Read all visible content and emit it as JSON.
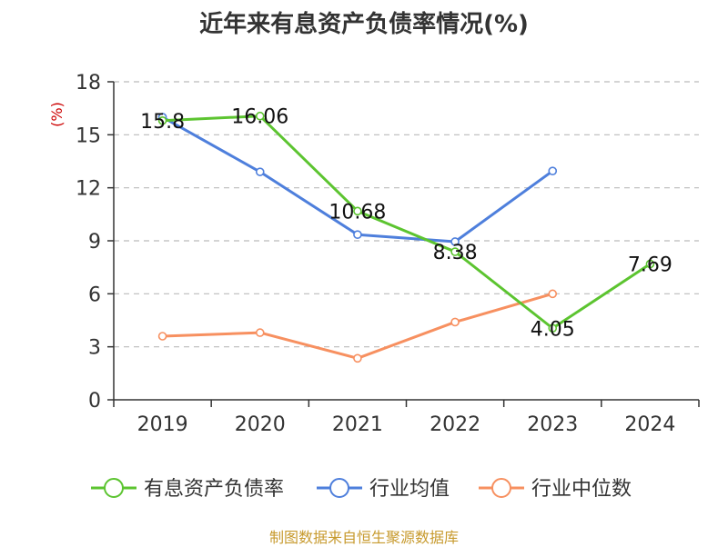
{
  "title": "近年来有息资产负债率情况(%)",
  "source": "制图数据来自恒生聚源数据库",
  "chart_data": {
    "type": "line",
    "title": "近年来有息资产负债率情况(%)",
    "yunit": "(%)",
    "categories": [
      "2019",
      "2020",
      "2021",
      "2022",
      "2023",
      "2024"
    ],
    "ylim": [
      0,
      18
    ],
    "yticks": [
      0,
      3,
      6,
      9,
      12,
      15,
      18
    ],
    "grid": true,
    "legend_position": "bottom",
    "series": [
      {
        "name": "有息资产负债率",
        "color": "#5cc430",
        "values": [
          15.8,
          16.06,
          10.68,
          8.38,
          4.05,
          7.69
        ],
        "labels": [
          "15.8",
          "16.06",
          "10.68",
          "8.38",
          "4.05",
          "7.69"
        ]
      },
      {
        "name": "行业均值",
        "color": "#4e7fdc",
        "values": [
          16.0,
          12.9,
          9.35,
          8.95,
          12.95,
          null
        ]
      },
      {
        "name": "行业中位数",
        "color": "#f79060",
        "values": [
          3.6,
          3.8,
          2.35,
          4.4,
          6.0,
          null
        ]
      }
    ]
  }
}
